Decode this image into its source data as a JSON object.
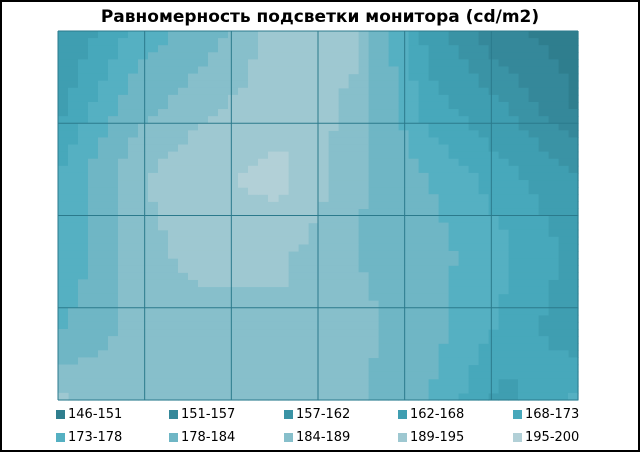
{
  "chart_data": {
    "type": "contour",
    "title": "Равномерность  подсветки монитора (cd/m2)",
    "grid": true,
    "legend_position": "bottom",
    "bands": [
      {
        "label": "146-151",
        "min": 146,
        "max": 151,
        "color": "#2f7e8e"
      },
      {
        "label": "151-157",
        "min": 151,
        "max": 157,
        "color": "#35889a"
      },
      {
        "label": "157-162",
        "min": 157,
        "max": 162,
        "color": "#3a93a5"
      },
      {
        "label": "162-168",
        "min": 162,
        "max": 168,
        "color": "#3f9eb1"
      },
      {
        "label": "168-173",
        "min": 168,
        "max": 173,
        "color": "#47a8bb"
      },
      {
        "label": "173-178",
        "min": 173,
        "max": 178,
        "color": "#55b0c2"
      },
      {
        "label": "178-184",
        "min": 178,
        "max": 184,
        "color": "#6fb6c5"
      },
      {
        "label": "184-189",
        "min": 184,
        "max": 189,
        "color": "#87bfcb"
      },
      {
        "label": "189-195",
        "min": 189,
        "max": 195,
        "color": "#9ec8d1"
      },
      {
        "label": "195-200",
        "min": 195,
        "max": 200,
        "color": "#b2d0d7"
      }
    ],
    "grid_values": [
      [
        162,
        174,
        181,
        192,
        190,
        165,
        152,
        148
      ],
      [
        166,
        181,
        188,
        192,
        188,
        170,
        162,
        150
      ],
      [
        173,
        188,
        194,
        197,
        185,
        178,
        170,
        163
      ],
      [
        172,
        186,
        192,
        190,
        184,
        180,
        174,
        166
      ],
      [
        177,
        186,
        186,
        188,
        186,
        180,
        172,
        164
      ],
      [
        190,
        186,
        185,
        187,
        185,
        178,
        166,
        174
      ]
    ]
  }
}
